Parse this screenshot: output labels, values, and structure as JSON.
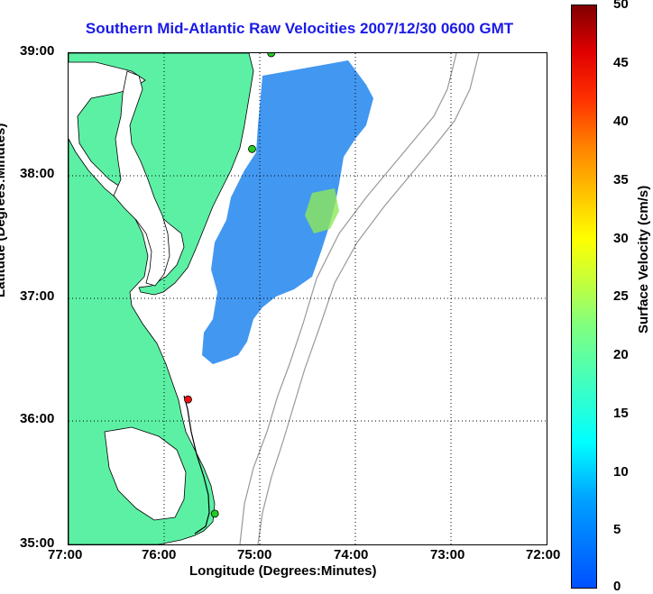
{
  "title": "Southern Mid-Atlantic Raw Velocities 2007/12/30 0600 GMT",
  "x_axis": {
    "label": "Longitude (Degrees:Minutes)",
    "ticks": [
      "77:00",
      "76:00",
      "75:00",
      "74:00",
      "73:00",
      "72:00"
    ]
  },
  "y_axis": {
    "label": "Latitude (Degrees:Minutes)",
    "ticks": [
      "39:00",
      "38:00",
      "37:00",
      "36:00",
      "35:00"
    ]
  },
  "colorbar": {
    "label": "Surface Velocity (cm/s)",
    "ticks": [
      "50",
      "45",
      "40",
      "35",
      "30",
      "25",
      "20",
      "15",
      "10",
      "5",
      "0"
    ],
    "range": [
      0,
      50
    ],
    "colormap": "jet"
  },
  "map": {
    "extent_lon": [
      -77,
      -72
    ],
    "extent_lat": [
      35,
      39
    ],
    "grid": "dotted",
    "land_color": "#5cf0a5",
    "station_markers": [
      {
        "lon": -74.88,
        "lat": 39.0,
        "color": "#22cc22"
      },
      {
        "lon": -75.08,
        "lat": 38.22,
        "color": "#22cc22"
      },
      {
        "lon": -75.75,
        "lat": 36.18,
        "color": "#ee1111"
      },
      {
        "lon": -75.47,
        "lat": 35.25,
        "color": "#22cc22"
      }
    ]
  }
}
